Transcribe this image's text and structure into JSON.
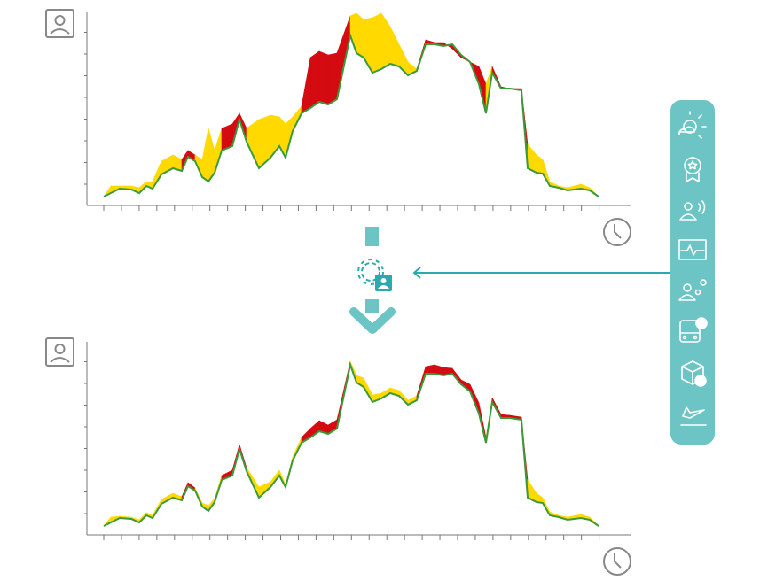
{
  "chart_data": [
    {
      "type": "area",
      "x": [
        0,
        8,
        18,
        31,
        40,
        48,
        55,
        65,
        78,
        88,
        95,
        103,
        111,
        118,
        125,
        133,
        145,
        153,
        161,
        175,
        188,
        198,
        205,
        213,
        223,
        233,
        243,
        253,
        263,
        278,
        285,
        293,
        303,
        313,
        323,
        333,
        343,
        353,
        363,
        373,
        383,
        393,
        403,
        413,
        423,
        431,
        438,
        448,
        458,
        471,
        478,
        488,
        495,
        503,
        513,
        523,
        538,
        548,
        558
      ],
      "xlim": [
        0,
        558
      ],
      "ylim": [
        0,
        220
      ],
      "line_color": "#3a9a3a",
      "colors": [
        "#ffd900",
        "#d40b11"
      ],
      "band": [
        0,
        0,
        0,
        0,
        0,
        0,
        0,
        0,
        0,
        1,
        1,
        0,
        0,
        0,
        0,
        1,
        1,
        1,
        0,
        0,
        0,
        0,
        0,
        0,
        1,
        1,
        1,
        1,
        1,
        0,
        0,
        0,
        0,
        0,
        0,
        0,
        0,
        1,
        1,
        1,
        1,
        1,
        1,
        1,
        1,
        0,
        1,
        1,
        1,
        1,
        0,
        0,
        0,
        0,
        0,
        0,
        0,
        0
      ],
      "series": [
        {
          "values": [
            10,
            14,
            19,
            18,
            14,
            22,
            19,
            35,
            42,
            39,
            55,
            50,
            32,
            27,
            37,
            62,
            67,
            97,
            72,
            42,
            54,
            67,
            54,
            84,
            104,
            110,
            117,
            114,
            120,
            192,
            172,
            167,
            150,
            154,
            160,
            157,
            147,
            152,
            182,
            182,
            180,
            182,
            170,
            162,
            137,
            104,
            150,
            132,
            132,
            130,
            42,
            37,
            36,
            22,
            20,
            17,
            19,
            17,
            10
          ]
        },
        {
          "values": [
            10,
            22,
            22,
            22,
            20,
            27,
            27,
            50,
            57,
            52,
            62,
            57,
            52,
            87,
            62,
            87,
            92,
            104,
            87,
            97,
            102,
            100,
            92,
            100,
            112,
            167,
            174,
            170,
            172,
            214,
            217,
            210,
            212,
            217,
            202,
            182,
            162,
            154,
            187,
            184,
            184,
            177,
            167,
            162,
            157,
            137,
            157,
            134,
            132,
            132,
            69,
            57,
            52,
            27,
            22,
            20,
            24,
            20,
            10
          ]
        }
      ]
    },
    {
      "type": "area",
      "x": [
        0,
        8,
        18,
        31,
        40,
        48,
        55,
        65,
        78,
        88,
        95,
        103,
        111,
        118,
        125,
        133,
        145,
        153,
        161,
        175,
        188,
        198,
        205,
        213,
        223,
        233,
        243,
        253,
        263,
        278,
        285,
        293,
        303,
        313,
        323,
        333,
        343,
        353,
        363,
        373,
        383,
        393,
        403,
        413,
        423,
        431,
        438,
        448,
        458,
        471,
        478,
        488,
        495,
        503,
        513,
        523,
        538,
        548,
        558
      ],
      "xlim": [
        0,
        558
      ],
      "ylim": [
        0,
        220
      ],
      "line_color": "#3a9a3a",
      "colors": [
        "#ffd900",
        "#d40b11"
      ],
      "band": [
        0,
        0,
        0,
        0,
        0,
        0,
        0,
        0,
        0,
        1,
        1,
        0,
        0,
        0,
        0,
        1,
        1,
        1,
        0,
        0,
        0,
        0,
        0,
        0,
        1,
        1,
        1,
        1,
        1,
        0,
        0,
        0,
        0,
        0,
        0,
        0,
        0,
        1,
        1,
        1,
        1,
        1,
        1,
        1,
        1,
        0,
        1,
        1,
        1,
        1,
        0,
        0,
        0,
        0,
        0,
        0,
        0,
        0
      ],
      "series": [
        {
          "values": [
            10,
            14,
            19,
            18,
            14,
            22,
            19,
            35,
            42,
            39,
            55,
            50,
            32,
            27,
            37,
            62,
            67,
            97,
            72,
            42,
            54,
            67,
            54,
            84,
            104,
            110,
            117,
            114,
            120,
            192,
            172,
            167,
            150,
            154,
            160,
            157,
            147,
            152,
            182,
            182,
            180,
            182,
            170,
            162,
            137,
            104,
            150,
            132,
            132,
            130,
            42,
            37,
            36,
            22,
            20,
            17,
            19,
            17,
            10
          ]
        },
        {
          "values": [
            10,
            20,
            21,
            20,
            17,
            25,
            22,
            40,
            47,
            43,
            59,
            53,
            36,
            33,
            41,
            67,
            73,
            102,
            76,
            54,
            60,
            73,
            57,
            88,
            110,
            120,
            129,
            124,
            130,
            196,
            180,
            177,
            158,
            160,
            166,
            163,
            152,
            157,
            190,
            192,
            189,
            188,
            175,
            170,
            149,
            110,
            155,
            136,
            135,
            133,
            62,
            47,
            42,
            26,
            22,
            20,
            23,
            20,
            10
          ]
        }
      ]
    }
  ]
}
